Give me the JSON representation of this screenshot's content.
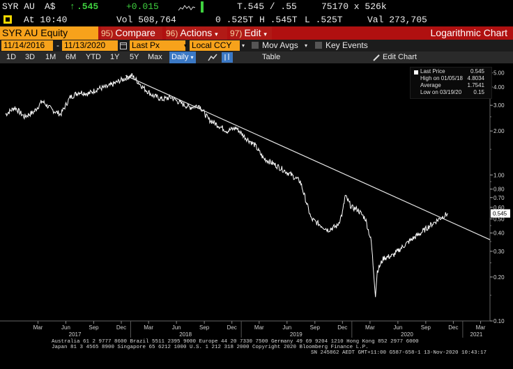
{
  "ticker": {
    "symbol": "SYR AU",
    "currency": "A$",
    "arrow": "↑",
    "last": ".545",
    "change": "+0.015",
    "pricing_stat": "75170 x 526k",
    "time": "At 10:40",
    "vol": "Vol 508,764",
    "open": "0 .525T",
    "high": "H .545T",
    "low": "L .525T",
    "val": "Val 273,705",
    "bidask": "T.545 / .55"
  },
  "fnbar": {
    "security": "SYR AU Equity",
    "compare_num": "95)",
    "compare": "Compare",
    "actions_num": "96)",
    "actions": "Actions",
    "edit_num": "97)",
    "edit": "Edit",
    "title": "Logarithmic Chart"
  },
  "controls": {
    "start_date": "11/14/2016",
    "end_date": "11/13/2020",
    "price_field": "Last Px",
    "currency": "Local CCY",
    "mov_avgs": "Mov Avgs",
    "key_events": "Key Events",
    "ranges": [
      "1D",
      "3D",
      "1M",
      "6M",
      "YTD",
      "1Y",
      "5Y",
      "Max"
    ],
    "period": "Daily",
    "table": "Table",
    "edit_chart": "Edit Chart"
  },
  "legend": {
    "last_price_label": "Last Price",
    "last_price": "0.545",
    "high_label": "High on 01/05/18",
    "high": "4.8034",
    "avg_label": "Average",
    "avg": "1.7541",
    "low_label": "Low on 03/19/20",
    "low": "0.15"
  },
  "chart_data": {
    "type": "line",
    "title": "",
    "xlabel": "",
    "ylabel": "",
    "log_scale": true,
    "ylim": [
      0.1,
      5.5
    ],
    "y_ticks": [
      "5.00",
      "4.00",
      "3.00",
      "2.00",
      "1.00",
      "0.80",
      "0.70",
      "0.60",
      "0.50",
      "0.40",
      "0.30",
      "0.20",
      "0.10"
    ],
    "current_price_tag": "0.545",
    "x_month_labels": [
      "Mar",
      "Jun",
      "Sep",
      "Dec",
      "Mar",
      "Jun",
      "Sep",
      "Dec",
      "Mar",
      "Jun",
      "Sep",
      "Dec",
      "Mar",
      "Jun",
      "Sep",
      "Dec",
      "Mar"
    ],
    "x_year_labels": [
      "2017",
      "2018",
      "2019",
      "2020",
      "2021"
    ],
    "series": [
      {
        "color": "#ffffff",
        "x": [
          "2016-11-14",
          "2016-12-15",
          "2017-01-15",
          "2017-02-15",
          "2017-03-15",
          "2017-04-15",
          "2017-05-15",
          "2017-06-15",
          "2017-07-15",
          "2017-08-15",
          "2017-09-15",
          "2017-10-15",
          "2017-11-15",
          "2017-12-15",
          "2018-01-05",
          "2018-02-15",
          "2018-03-15",
          "2018-04-15",
          "2018-05-15",
          "2018-06-15",
          "2018-07-15",
          "2018-08-15",
          "2018-09-15",
          "2018-10-15",
          "2018-11-15",
          "2018-12-15",
          "2019-01-15",
          "2019-02-15",
          "2019-03-15",
          "2019-04-15",
          "2019-05-15",
          "2019-06-15",
          "2019-07-15",
          "2019-08-01",
          "2019-08-20",
          "2019-09-15",
          "2019-10-15",
          "2019-11-15",
          "2019-12-01",
          "2019-12-10",
          "2019-12-31",
          "2020-01-20",
          "2020-02-15",
          "2020-03-05",
          "2020-03-19",
          "2020-03-25",
          "2020-04-15",
          "2020-05-15",
          "2020-06-15",
          "2020-07-15",
          "2020-08-15",
          "2020-09-15",
          "2020-10-15",
          "2020-11-13"
        ],
        "values": [
          2.6,
          2.9,
          2.5,
          2.7,
          3.2,
          2.8,
          2.6,
          3.4,
          3.7,
          3.6,
          3.9,
          4.0,
          4.3,
          4.6,
          4.8,
          3.9,
          3.5,
          3.3,
          3.4,
          3.1,
          2.9,
          3.0,
          2.4,
          2.2,
          2.0,
          2.1,
          1.8,
          1.6,
          1.3,
          1.2,
          1.1,
          1.0,
          0.9,
          0.68,
          0.5,
          0.46,
          0.42,
          0.45,
          0.55,
          0.72,
          0.6,
          0.58,
          0.5,
          0.35,
          0.15,
          0.22,
          0.27,
          0.28,
          0.32,
          0.36,
          0.4,
          0.45,
          0.5,
          0.545
        ]
      }
    ],
    "trendline": {
      "from": {
        "x": "2017-12-15",
        "y": 4.8
      },
      "to": {
        "x": "2021-04-01",
        "y": 0.36
      }
    }
  },
  "footer": {
    "line1": "Australia 61 2 9777 8600 Brazil 5511 2395 9000 Europe 44 20 7330 7500 Germany 49 69 9204 1210 Hong Kong 852 2977 6000",
    "line2": "Japan 81 3 4565 8900        Singapore 65 6212 1000        U.S. 1 212 318 2000              Copyright 2020 Bloomberg Finance L.P.",
    "line3": "SN 245862 AEDT GMT+11:00 G587-658-1 13-Nov-2020 10:43:17"
  },
  "colors": {
    "accent_orange": "#f7a21b",
    "function_red": "#b11a16",
    "selected_blue": "#3b78c4",
    "price_yellow": "#f5d800",
    "up_green": "#3fd13f"
  }
}
